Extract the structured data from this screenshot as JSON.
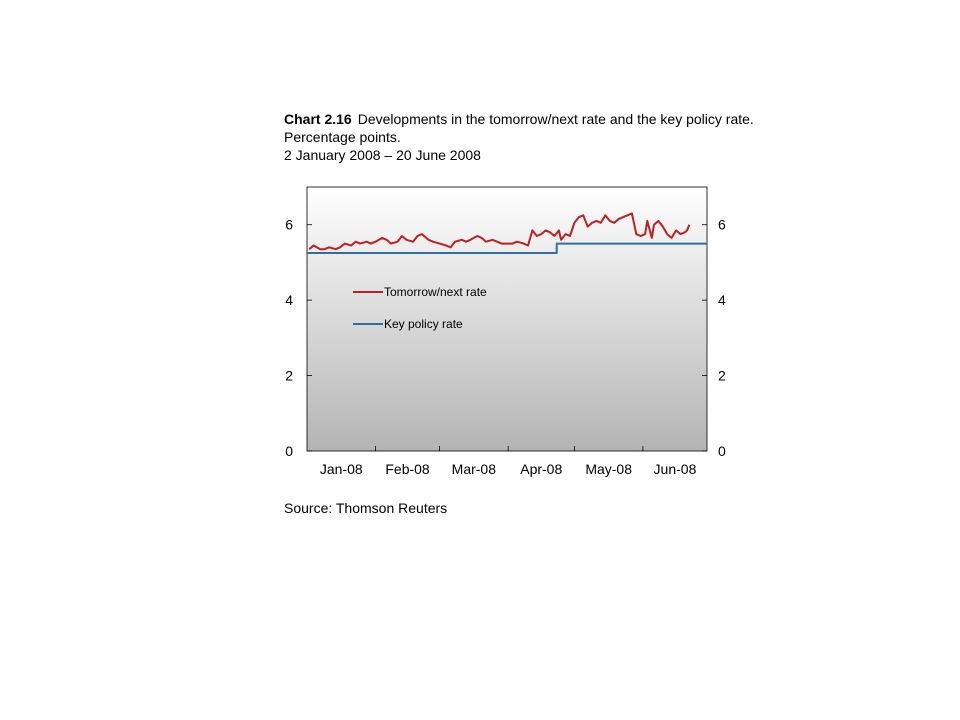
{
  "title": {
    "label": "Chart 2.16",
    "text": "Developments in the tomorrow/next rate and the key policy rate. Percentage points.",
    "subtitle": "2 January 2008 – 20 June 2008"
  },
  "source": "Source: Thomson Reuters",
  "chart_data": {
    "type": "line",
    "ylim": [
      0,
      7
    ],
    "yticks": [
      0,
      2,
      4,
      6
    ],
    "xlim": [
      "2008-01-01",
      "2008-06-30"
    ],
    "xticks": [
      {
        "date": "2008-01-01",
        "label": "Jan-08"
      },
      {
        "date": "2008-02-01",
        "label": "Feb-08"
      },
      {
        "date": "2008-03-01",
        "label": "Mar-08"
      },
      {
        "date": "2008-04-01",
        "label": "Apr-08"
      },
      {
        "date": "2008-05-01",
        "label": "May-08"
      },
      {
        "date": "2008-06-01",
        "label": "Jun-08"
      }
    ],
    "right_axis": true,
    "grid": false,
    "legend_position": "upper-left inside",
    "series": [
      {
        "name": "Tomorrow/next rate",
        "color": "#c0201e",
        "points": [
          [
            "2008-01-02",
            5.35
          ],
          [
            "2008-01-04",
            5.45
          ],
          [
            "2008-01-07",
            5.35
          ],
          [
            "2008-01-09",
            5.35
          ],
          [
            "2008-01-11",
            5.4
          ],
          [
            "2008-01-14",
            5.35
          ],
          [
            "2008-01-16",
            5.4
          ],
          [
            "2008-01-18",
            5.5
          ],
          [
            "2008-01-21",
            5.45
          ],
          [
            "2008-01-23",
            5.55
          ],
          [
            "2008-01-25",
            5.5
          ],
          [
            "2008-01-28",
            5.55
          ],
          [
            "2008-01-30",
            5.5
          ],
          [
            "2008-02-01",
            5.55
          ],
          [
            "2008-02-04",
            5.65
          ],
          [
            "2008-02-06",
            5.6
          ],
          [
            "2008-02-08",
            5.5
          ],
          [
            "2008-02-11",
            5.55
          ],
          [
            "2008-02-13",
            5.7
          ],
          [
            "2008-02-15",
            5.6
          ],
          [
            "2008-02-18",
            5.55
          ],
          [
            "2008-02-20",
            5.7
          ],
          [
            "2008-02-22",
            5.75
          ],
          [
            "2008-02-25",
            5.6
          ],
          [
            "2008-02-27",
            5.55
          ],
          [
            "2008-03-01",
            5.5
          ],
          [
            "2008-03-04",
            5.45
          ],
          [
            "2008-03-06",
            5.4
          ],
          [
            "2008-03-08",
            5.55
          ],
          [
            "2008-03-11",
            5.6
          ],
          [
            "2008-03-13",
            5.55
          ],
          [
            "2008-03-15",
            5.6
          ],
          [
            "2008-03-18",
            5.7
          ],
          [
            "2008-03-20",
            5.65
          ],
          [
            "2008-03-22",
            5.55
          ],
          [
            "2008-03-25",
            5.6
          ],
          [
            "2008-03-27",
            5.55
          ],
          [
            "2008-03-29",
            5.5
          ],
          [
            "2008-04-01",
            5.5
          ],
          [
            "2008-04-03",
            5.5
          ],
          [
            "2008-04-05",
            5.55
          ],
          [
            "2008-04-08",
            5.5
          ],
          [
            "2008-04-10",
            5.45
          ],
          [
            "2008-04-12",
            5.85
          ],
          [
            "2008-04-14",
            5.7
          ],
          [
            "2008-04-16",
            5.75
          ],
          [
            "2008-04-18",
            5.85
          ],
          [
            "2008-04-20",
            5.8
          ],
          [
            "2008-04-22",
            5.7
          ],
          [
            "2008-04-24",
            5.85
          ],
          [
            "2008-04-25",
            5.6
          ],
          [
            "2008-04-27",
            5.75
          ],
          [
            "2008-04-29",
            5.7
          ],
          [
            "2008-05-01",
            6.05
          ],
          [
            "2008-05-03",
            6.2
          ],
          [
            "2008-05-05",
            6.25
          ],
          [
            "2008-05-07",
            5.95
          ],
          [
            "2008-05-09",
            6.05
          ],
          [
            "2008-05-11",
            6.1
          ],
          [
            "2008-05-13",
            6.05
          ],
          [
            "2008-05-15",
            6.25
          ],
          [
            "2008-05-17",
            6.1
          ],
          [
            "2008-05-19",
            6.05
          ],
          [
            "2008-05-21",
            6.15
          ],
          [
            "2008-05-23",
            6.2
          ],
          [
            "2008-05-25",
            6.25
          ],
          [
            "2008-05-27",
            6.3
          ],
          [
            "2008-05-29",
            5.75
          ],
          [
            "2008-05-31",
            5.7
          ],
          [
            "2008-06-02",
            5.75
          ],
          [
            "2008-06-03",
            6.1
          ],
          [
            "2008-06-05",
            5.65
          ],
          [
            "2008-06-06",
            6.0
          ],
          [
            "2008-06-08",
            6.1
          ],
          [
            "2008-06-10",
            5.95
          ],
          [
            "2008-06-12",
            5.75
          ],
          [
            "2008-06-14",
            5.65
          ],
          [
            "2008-06-16",
            5.85
          ],
          [
            "2008-06-18",
            5.75
          ],
          [
            "2008-06-20",
            5.8
          ],
          [
            "2008-06-21",
            5.85
          ],
          [
            "2008-06-22",
            6.0
          ]
        ]
      },
      {
        "name": "Key policy rate",
        "color": "#2f6fa8",
        "points": [
          [
            "2008-01-01",
            5.25
          ],
          [
            "2008-04-23",
            5.25
          ],
          [
            "2008-04-23",
            5.5
          ],
          [
            "2008-06-30",
            5.5
          ]
        ]
      }
    ]
  }
}
